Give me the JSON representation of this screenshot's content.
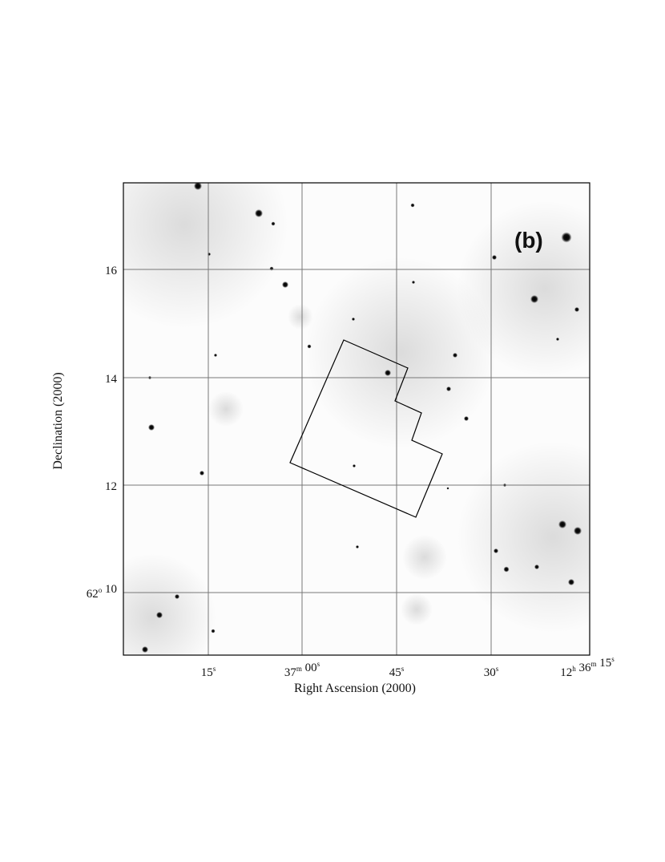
{
  "panel_label": "(b)",
  "x_axis": {
    "title": "Right Ascension (2000)",
    "ticks": [
      [
        {
          "text": "15",
          "sup": "s"
        }
      ],
      [
        {
          "text": "37",
          "sup": "m"
        },
        {
          "text": " 00",
          "sup": "s"
        }
      ],
      [
        {
          "text": "45",
          "sup": "s"
        }
      ],
      [
        {
          "text": "30",
          "sup": "s"
        }
      ],
      [
        {
          "text": "12",
          "sup": "h"
        },
        {
          "text": " 36",
          "sup": "m"
        },
        {
          "text": " 15",
          "sup": "s"
        }
      ]
    ]
  },
  "y_axis": {
    "title": "Declination (2000)",
    "ticks": [
      [
        {
          "text": "16"
        }
      ],
      [
        {
          "text": "14"
        }
      ],
      [
        {
          "text": "12"
        }
      ],
      [
        {
          "text": "62",
          "sup": "o"
        },
        {
          "text": " 10"
        }
      ]
    ]
  }
}
